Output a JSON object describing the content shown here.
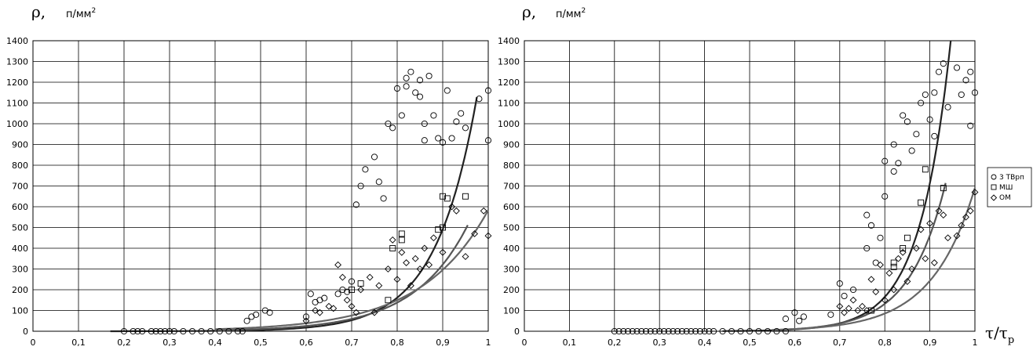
{
  "chart_data": [
    {
      "type": "scatter",
      "ylabel": "ρ,",
      "yunit": "п/мм",
      "yunit_sup": "2",
      "xlabel": "",
      "xlim": [
        0,
        1
      ],
      "ylim": [
        0,
        1400
      ],
      "x_ticks": [
        "0",
        "0,1",
        "0,2",
        "0,3",
        "0,4",
        "0,5",
        "0,6",
        "0,7",
        "0,8",
        "0,9",
        "1"
      ],
      "y_ticks": [
        "0",
        "100",
        "200",
        "300",
        "400",
        "500",
        "600",
        "700",
        "800",
        "900",
        "1000",
        "1100",
        "1200",
        "1300",
        "1400"
      ],
      "grid": true,
      "series": [
        {
          "name": "3 ТВрп",
          "marker": "circle",
          "points": [
            [
              0.2,
              0
            ],
            [
              0.22,
              0
            ],
            [
              0.23,
              0
            ],
            [
              0.24,
              0
            ],
            [
              0.26,
              0
            ],
            [
              0.27,
              0
            ],
            [
              0.28,
              0
            ],
            [
              0.29,
              0
            ],
            [
              0.3,
              0
            ],
            [
              0.31,
              0
            ],
            [
              0.33,
              0
            ],
            [
              0.35,
              0
            ],
            [
              0.37,
              0
            ],
            [
              0.39,
              0
            ],
            [
              0.41,
              0
            ],
            [
              0.43,
              0
            ],
            [
              0.45,
              0
            ],
            [
              0.46,
              0
            ],
            [
              0.47,
              50
            ],
            [
              0.48,
              70
            ],
            [
              0.49,
              80
            ],
            [
              0.51,
              100
            ],
            [
              0.52,
              90
            ],
            [
              0.6,
              70
            ],
            [
              0.61,
              180
            ],
            [
              0.62,
              140
            ],
            [
              0.63,
              150
            ],
            [
              0.64,
              160
            ],
            [
              0.67,
              180
            ],
            [
              0.68,
              200
            ],
            [
              0.69,
              190
            ],
            [
              0.7,
              240
            ],
            [
              0.71,
              610
            ],
            [
              0.72,
              700
            ],
            [
              0.73,
              780
            ],
            [
              0.75,
              840
            ],
            [
              0.76,
              720
            ],
            [
              0.77,
              640
            ],
            [
              0.78,
              1000
            ],
            [
              0.79,
              980
            ],
            [
              0.8,
              1170
            ],
            [
              0.81,
              1040
            ],
            [
              0.82,
              1180
            ],
            [
              0.82,
              1220
            ],
            [
              0.83,
              1250
            ],
            [
              0.84,
              1150
            ],
            [
              0.85,
              1210
            ],
            [
              0.85,
              1130
            ],
            [
              0.86,
              1000
            ],
            [
              0.86,
              920
            ],
            [
              0.87,
              1230
            ],
            [
              0.88,
              1040
            ],
            [
              0.89,
              930
            ],
            [
              0.9,
              910
            ],
            [
              0.91,
              1160
            ],
            [
              0.92,
              930
            ],
            [
              0.93,
              1010
            ],
            [
              0.94,
              1050
            ],
            [
              0.95,
              980
            ],
            [
              0.98,
              1120
            ],
            [
              1.0,
              1160
            ],
            [
              1.0,
              920
            ]
          ]
        },
        {
          "name": "МШ",
          "marker": "square",
          "points": [
            [
              0.7,
              200
            ],
            [
              0.72,
              230
            ],
            [
              0.78,
              150
            ],
            [
              0.79,
              400
            ],
            [
              0.81,
              470
            ],
            [
              0.81,
              440
            ],
            [
              0.89,
              490
            ],
            [
              0.9,
              650
            ],
            [
              0.9,
              500
            ],
            [
              0.91,
              640
            ],
            [
              0.95,
              650
            ]
          ]
        },
        {
          "name": "ОМ",
          "marker": "diamond",
          "points": [
            [
              0.6,
              50
            ],
            [
              0.62,
              100
            ],
            [
              0.63,
              90
            ],
            [
              0.65,
              120
            ],
            [
              0.66,
              110
            ],
            [
              0.67,
              320
            ],
            [
              0.68,
              260
            ],
            [
              0.69,
              150
            ],
            [
              0.7,
              120
            ],
            [
              0.71,
              90
            ],
            [
              0.72,
              200
            ],
            [
              0.74,
              260
            ],
            [
              0.75,
              90
            ],
            [
              0.76,
              220
            ],
            [
              0.78,
              300
            ],
            [
              0.79,
              440
            ],
            [
              0.8,
              250
            ],
            [
              0.81,
              380
            ],
            [
              0.82,
              330
            ],
            [
              0.83,
              220
            ],
            [
              0.84,
              350
            ],
            [
              0.85,
              300
            ],
            [
              0.86,
              400
            ],
            [
              0.87,
              320
            ],
            [
              0.88,
              450
            ],
            [
              0.9,
              380
            ],
            [
              0.92,
              600
            ],
            [
              0.93,
              580
            ],
            [
              0.95,
              360
            ],
            [
              0.97,
              470
            ],
            [
              0.99,
              580
            ],
            [
              1.0,
              460
            ]
          ]
        }
      ]
    },
    {
      "type": "scatter",
      "ylabel": "ρ,",
      "yunit": "п/мм",
      "yunit_sup": "2",
      "xlabel": "τ/τ",
      "xlabel_sub": "p",
      "xlim": [
        0,
        1
      ],
      "ylim": [
        0,
        1400
      ],
      "x_ticks": [
        "0",
        "0,1",
        "0,2",
        "0,3",
        "0,4",
        "0,5",
        "0,6",
        "0,7",
        "0,8",
        "0,9",
        "1"
      ],
      "y_ticks": [
        "0",
        "100",
        "200",
        "300",
        "400",
        "500",
        "600",
        "700",
        "800",
        "900",
        "1000",
        "1100",
        "1200",
        "1300",
        "1400"
      ],
      "grid": true,
      "legend": {
        "placement": "right",
        "entries": [
          {
            "marker": "circle",
            "label": "3 ТВрп"
          },
          {
            "marker": "square",
            "label": "МШ"
          },
          {
            "marker": "diamond",
            "label": "ОМ"
          }
        ]
      },
      "series": [
        {
          "name": "3 ТВрп",
          "marker": "circle",
          "points": [
            [
              0.2,
              0
            ],
            [
              0.21,
              0
            ],
            [
              0.22,
              0
            ],
            [
              0.23,
              0
            ],
            [
              0.24,
              0
            ],
            [
              0.25,
              0
            ],
            [
              0.26,
              0
            ],
            [
              0.27,
              0
            ],
            [
              0.28,
              0
            ],
            [
              0.29,
              0
            ],
            [
              0.3,
              0
            ],
            [
              0.31,
              0
            ],
            [
              0.32,
              0
            ],
            [
              0.33,
              0
            ],
            [
              0.34,
              0
            ],
            [
              0.35,
              0
            ],
            [
              0.36,
              0
            ],
            [
              0.37,
              0
            ],
            [
              0.38,
              0
            ],
            [
              0.39,
              0
            ],
            [
              0.4,
              0
            ],
            [
              0.41,
              0
            ],
            [
              0.42,
              0
            ],
            [
              0.44,
              0
            ],
            [
              0.46,
              0
            ],
            [
              0.48,
              0
            ],
            [
              0.5,
              0
            ],
            [
              0.52,
              0
            ],
            [
              0.54,
              0
            ],
            [
              0.56,
              0
            ],
            [
              0.58,
              0
            ],
            [
              0.58,
              60
            ],
            [
              0.6,
              90
            ],
            [
              0.61,
              50
            ],
            [
              0.62,
              70
            ],
            [
              0.68,
              80
            ],
            [
              0.7,
              230
            ],
            [
              0.71,
              170
            ],
            [
              0.73,
              200
            ],
            [
              0.76,
              560
            ],
            [
              0.77,
              510
            ],
            [
              0.76,
              400
            ],
            [
              0.78,
              330
            ],
            [
              0.79,
              450
            ],
            [
              0.8,
              820
            ],
            [
              0.8,
              650
            ],
            [
              0.82,
              900
            ],
            [
              0.82,
              770
            ],
            [
              0.83,
              810
            ],
            [
              0.84,
              1040
            ],
            [
              0.85,
              1010
            ],
            [
              0.86,
              870
            ],
            [
              0.87,
              950
            ],
            [
              0.88,
              1100
            ],
            [
              0.89,
              1140
            ],
            [
              0.9,
              1020
            ],
            [
              0.91,
              1150
            ],
            [
              0.91,
              940
            ],
            [
              0.92,
              1250
            ],
            [
              0.93,
              1290
            ],
            [
              0.94,
              1080
            ],
            [
              0.96,
              1270
            ],
            [
              0.97,
              1140
            ],
            [
              0.98,
              1210
            ],
            [
              0.99,
              1250
            ],
            [
              0.99,
              990
            ],
            [
              1.0,
              1150
            ]
          ]
        },
        {
          "name": "МШ",
          "marker": "square",
          "points": [
            [
              0.77,
              100
            ],
            [
              0.82,
              310
            ],
            [
              0.82,
              330
            ],
            [
              0.84,
              400
            ],
            [
              0.85,
              450
            ],
            [
              0.88,
              620
            ],
            [
              0.89,
              780
            ],
            [
              0.93,
              690
            ]
          ]
        },
        {
          "name": "ОМ",
          "marker": "diamond",
          "points": [
            [
              0.7,
              120
            ],
            [
              0.71,
              90
            ],
            [
              0.72,
              110
            ],
            [
              0.73,
              150
            ],
            [
              0.74,
              100
            ],
            [
              0.75,
              120
            ],
            [
              0.76,
              100
            ],
            [
              0.77,
              250
            ],
            [
              0.78,
              190
            ],
            [
              0.79,
              320
            ],
            [
              0.8,
              150
            ],
            [
              0.81,
              280
            ],
            [
              0.82,
              200
            ],
            [
              0.83,
              350
            ],
            [
              0.84,
              380
            ],
            [
              0.85,
              240
            ],
            [
              0.86,
              300
            ],
            [
              0.87,
              400
            ],
            [
              0.88,
              490
            ],
            [
              0.89,
              350
            ],
            [
              0.9,
              520
            ],
            [
              0.91,
              330
            ],
            [
              0.92,
              580
            ],
            [
              0.93,
              560
            ],
            [
              0.94,
              450
            ],
            [
              0.96,
              460
            ],
            [
              0.97,
              510
            ],
            [
              0.98,
              550
            ],
            [
              0.99,
              580
            ],
            [
              1.0,
              670
            ]
          ]
        }
      ]
    }
  ]
}
